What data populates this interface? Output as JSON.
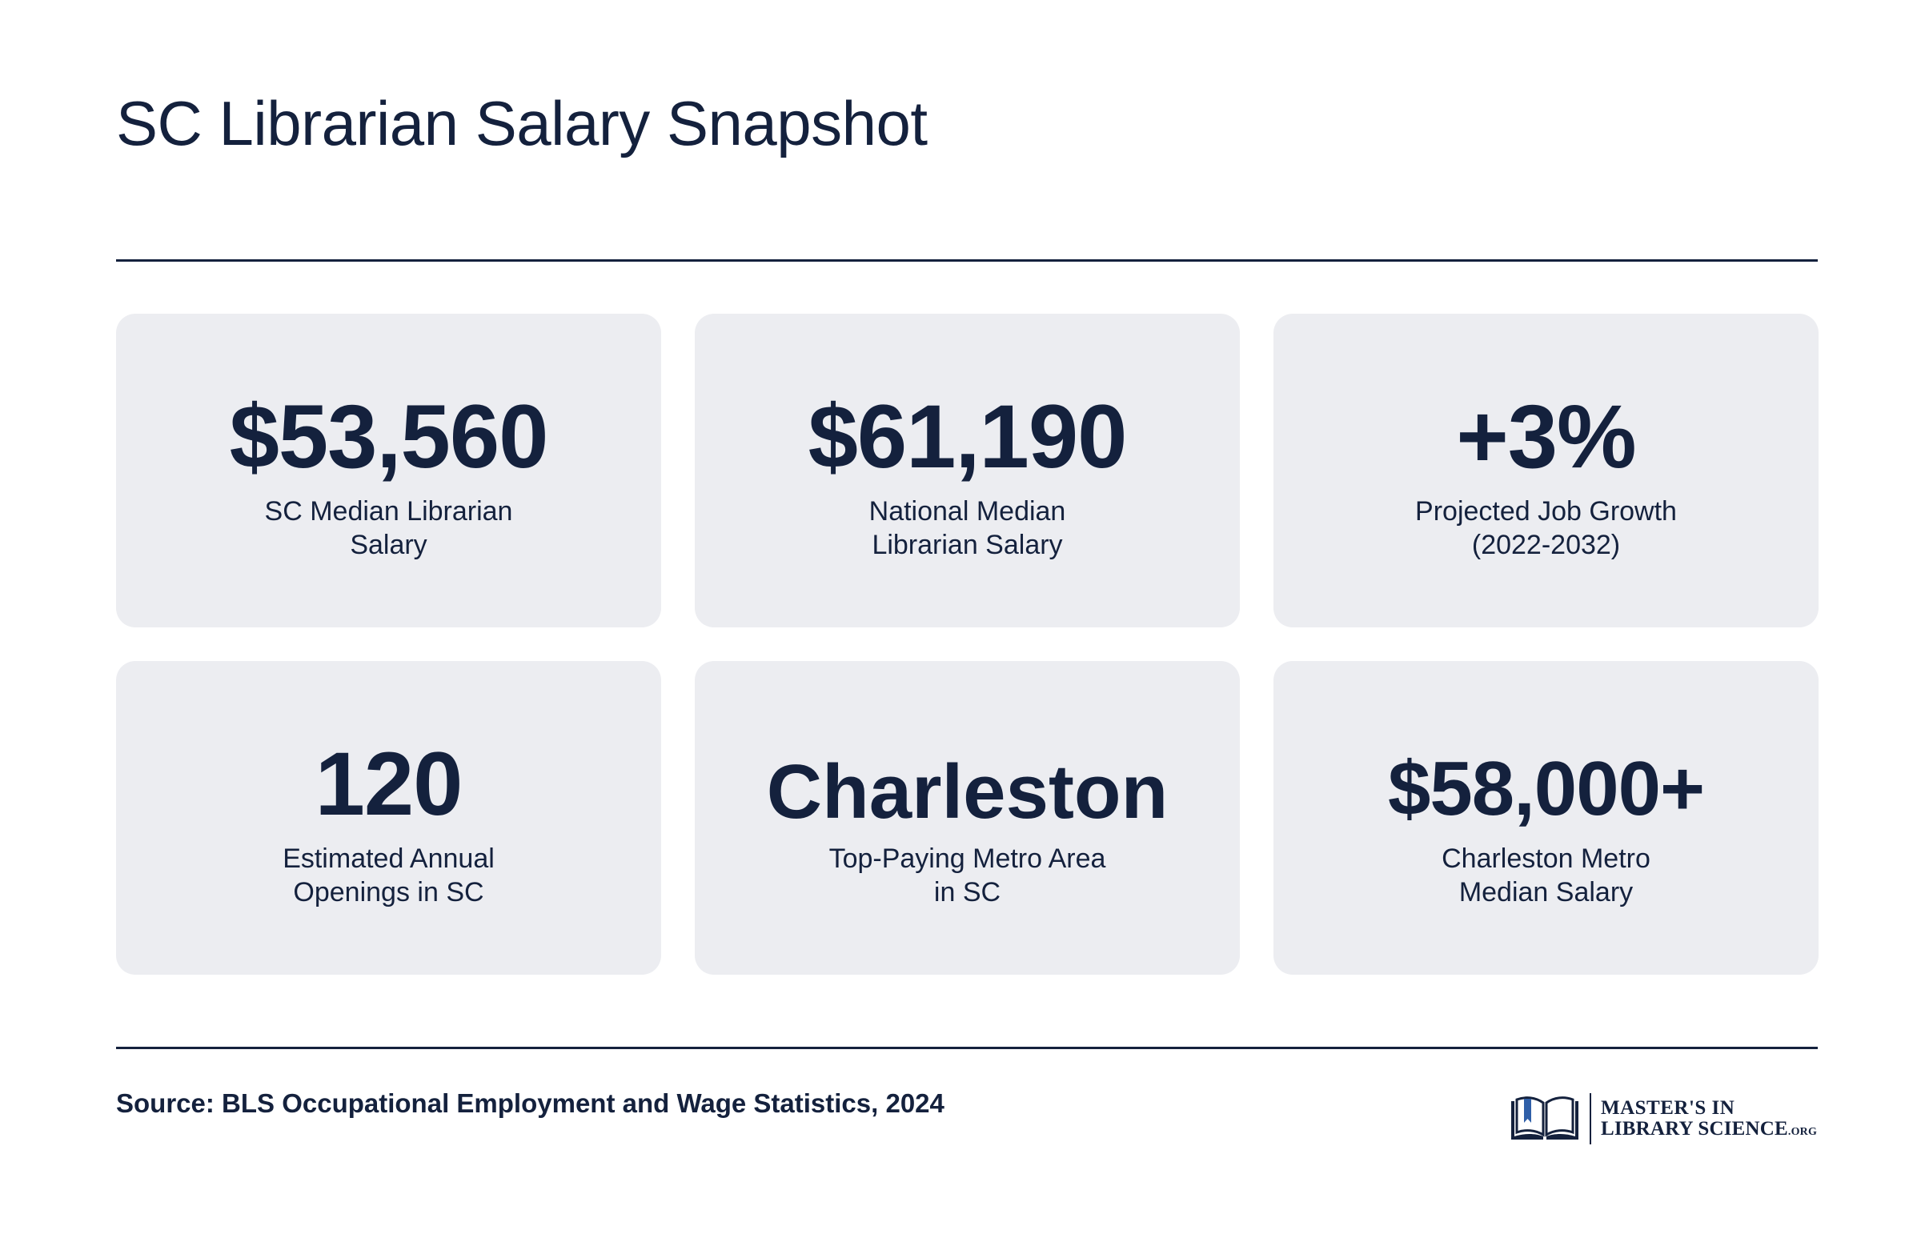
{
  "header": {
    "title": "SC Librarian Salary Snapshot"
  },
  "stats": [
    {
      "value": "$53,560",
      "label_line1": "SC Median Librarian",
      "label_line2": "Salary"
    },
    {
      "value": "$61,190",
      "label_line1": "National Median",
      "label_line2": "Librarian Salary"
    },
    {
      "value": "+3%",
      "label_line1": "Projected Job Growth",
      "label_line2": "(2022-2032)"
    },
    {
      "value": "120",
      "label_line1": "Estimated Annual",
      "label_line2": "Openings in SC"
    },
    {
      "value": "Charleston",
      "label_line1": "Top-Paying Metro Area",
      "label_line2": "in SC"
    },
    {
      "value": "$58,000+",
      "label_line1": "Charleston Metro",
      "label_line2": "Median Salary"
    }
  ],
  "footer": {
    "source": "Source: BLS Occupational Employment and Wage Statistics, 2024",
    "logo": {
      "line1": "MASTER'S IN",
      "line2": "LIBRARY SCIENCE",
      "tld": ".ORG",
      "icon": "open-book-icon"
    }
  },
  "colors": {
    "text": "#14213d",
    "card_background": "#ecedf1",
    "accent_blue": "#2f5fa8"
  }
}
